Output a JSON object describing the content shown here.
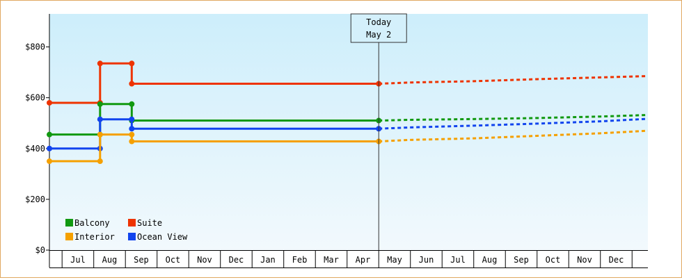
{
  "chart_data": {
    "type": "line",
    "line_style": "step",
    "y_tick_labels": [
      "$0",
      "$200",
      "$400",
      "$600",
      "$800"
    ],
    "y_ticks": [
      0,
      200,
      400,
      600,
      800
    ],
    "ylim": [
      0,
      930
    ],
    "x_tick_labels": [
      "Jul",
      "Aug",
      "Sep",
      "Oct",
      "Nov",
      "Dec",
      "Jan",
      "Feb",
      "Mar",
      "Apr",
      "May",
      "Jun",
      "Jul",
      "Aug",
      "Sep",
      "Oct",
      "Nov",
      "Dec"
    ],
    "x_unit": "month index (0 = start of Jul)",
    "xlim": [
      -0.4,
      18.5
    ],
    "today": {
      "x": 10.0,
      "line1": "Today",
      "line2": "May 2"
    },
    "series": [
      {
        "name": "Suite",
        "color": "#ee3300",
        "history": [
          [
            -0.4,
            580
          ],
          [
            1.2,
            580
          ],
          [
            1.2,
            735
          ],
          [
            2.2,
            735
          ],
          [
            2.2,
            655
          ],
          [
            10.0,
            655
          ]
        ],
        "forecast": [
          [
            10.0,
            655
          ],
          [
            11.0,
            660
          ],
          [
            13.0,
            665
          ],
          [
            15.0,
            673
          ],
          [
            17.0,
            680
          ],
          [
            18.5,
            685
          ]
        ]
      },
      {
        "name": "Balcony",
        "color": "#119911",
        "history": [
          [
            -0.4,
            455
          ],
          [
            1.2,
            455
          ],
          [
            1.2,
            575
          ],
          [
            2.2,
            575
          ],
          [
            2.2,
            510
          ],
          [
            10.0,
            510
          ]
        ],
        "forecast": [
          [
            10.0,
            510
          ],
          [
            11.0,
            513
          ],
          [
            13.0,
            516
          ],
          [
            15.0,
            520
          ],
          [
            17.0,
            526
          ],
          [
            18.5,
            532
          ]
        ]
      },
      {
        "name": "Ocean View",
        "color": "#1144ee",
        "history": [
          [
            -0.4,
            400
          ],
          [
            1.2,
            400
          ],
          [
            1.2,
            515
          ],
          [
            2.2,
            515
          ],
          [
            2.2,
            478
          ],
          [
            10.0,
            478
          ]
        ],
        "forecast": [
          [
            10.0,
            478
          ],
          [
            11.0,
            483
          ],
          [
            13.0,
            490
          ],
          [
            15.0,
            498
          ],
          [
            17.0,
            507
          ],
          [
            18.5,
            517
          ]
        ]
      },
      {
        "name": "Interior",
        "color": "#f5a000",
        "history": [
          [
            -0.4,
            350
          ],
          [
            1.2,
            350
          ],
          [
            1.2,
            455
          ],
          [
            2.2,
            455
          ],
          [
            2.2,
            428
          ],
          [
            10.0,
            428
          ]
        ],
        "forecast": [
          [
            10.0,
            428
          ],
          [
            11.0,
            434
          ],
          [
            13.0,
            440
          ],
          [
            15.0,
            450
          ],
          [
            17.0,
            460
          ],
          [
            18.5,
            470
          ]
        ]
      }
    ],
    "markers": {
      "Suite": [
        [
          -0.4,
          580
        ],
        [
          1.2,
          580
        ],
        [
          1.2,
          735
        ],
        [
          2.2,
          735
        ],
        [
          2.2,
          655
        ],
        [
          10.0,
          655
        ]
      ],
      "Balcony": [
        [
          -0.4,
          455
        ],
        [
          1.2,
          455
        ],
        [
          1.2,
          575
        ],
        [
          2.2,
          575
        ],
        [
          2.2,
          510
        ],
        [
          10.0,
          510
        ]
      ],
      "Ocean View": [
        [
          -0.4,
          400
        ],
        [
          1.2,
          400
        ],
        [
          1.2,
          515
        ],
        [
          2.2,
          515
        ],
        [
          2.2,
          478
        ],
        [
          10.0,
          478
        ]
      ],
      "Interior": [
        [
          -0.4,
          350
        ],
        [
          1.2,
          350
        ],
        [
          1.2,
          455
        ],
        [
          2.2,
          455
        ],
        [
          2.2,
          428
        ],
        [
          10.0,
          428
        ]
      ]
    },
    "legend": {
      "placement": "bottom-left",
      "items": [
        {
          "label": "Balcony",
          "color": "#119911"
        },
        {
          "label": "Suite",
          "color": "#ee3300"
        },
        {
          "label": "Interior",
          "color": "#f5a000"
        },
        {
          "label": "Ocean View",
          "color": "#1144ee"
        }
      ]
    },
    "grid": false,
    "background_gradient": [
      "#cdeefb",
      "#f2f9fd"
    ]
  }
}
